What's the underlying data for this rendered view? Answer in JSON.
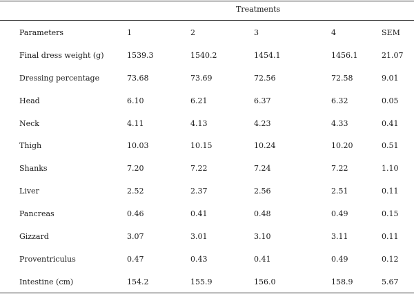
{
  "table": {
    "group_header": "Treatments",
    "columns": [
      "Parameters",
      "1",
      "2",
      "3",
      "4",
      "SEM"
    ],
    "rows": [
      [
        "Final dress weight (g)",
        "1539.3",
        "1540.2",
        "1454.1",
        "1456.1",
        "21.07"
      ],
      [
        "Dressing percentage",
        "73.68",
        "73.69",
        "72.56",
        "72.58",
        "9.01"
      ],
      [
        "Head",
        "6.10",
        "6.21",
        "6.37",
        "6.32",
        "0.05"
      ],
      [
        "Neck",
        "4.11",
        "4.13",
        "4.23",
        "4.33",
        "0.41"
      ],
      [
        "Thigh",
        "10.03",
        "10.15",
        "10.24",
        "10.20",
        "0.51"
      ],
      [
        "Shanks",
        "7.20",
        "7.22",
        "7.24",
        "7.22",
        "1.10"
      ],
      [
        "Liver",
        "2.52",
        "2.37",
        "2.56",
        "2.51",
        "0.11"
      ],
      [
        "Pancreas",
        "0.46",
        "0.41",
        "0.48",
        "0.49",
        "0.15"
      ],
      [
        "Gizzard",
        "3.07",
        "3.01",
        "3.10",
        "3.11",
        "0.11"
      ],
      [
        "Proventriculus",
        "0.47",
        "0.43",
        "0.41",
        "0.49",
        "0.12"
      ],
      [
        "Intestine (cm)",
        "154.2",
        "155.9",
        "156.0",
        "158.9",
        "5.67"
      ]
    ]
  }
}
